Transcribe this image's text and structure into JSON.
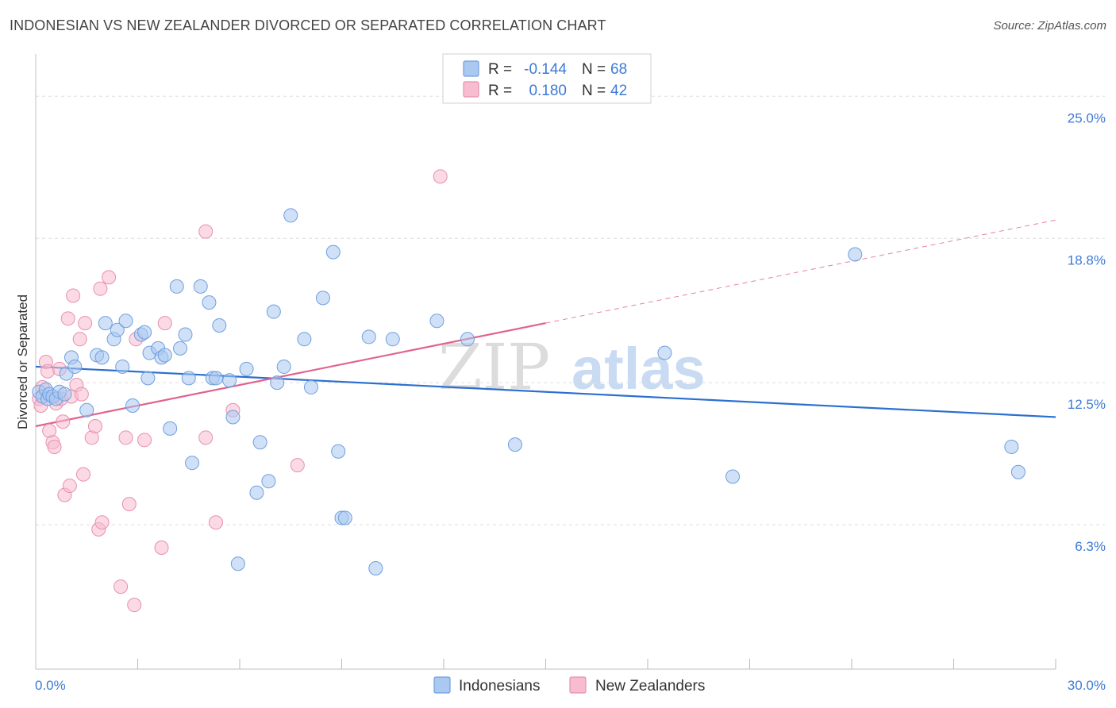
{
  "title": "INDONESIAN VS NEW ZEALANDER DIVORCED OR SEPARATED CORRELATION CHART",
  "source": "Source: ZipAtlas.com",
  "watermark": {
    "zip": "ZIP",
    "atlas": "atlas"
  },
  "legend": {
    "r_label": "R =",
    "n_label": "N =",
    "series1": {
      "r": "-0.144",
      "n": "68"
    },
    "series2": {
      "r": "0.180",
      "n": "42"
    }
  },
  "bottom_legend": {
    "series1": "Indonesians",
    "series2": "New Zealanders"
  },
  "colors": {
    "indonesians_fill": "#aac8f0",
    "indonesians_stroke": "#6f9fdf",
    "indonesians_line": "#2b6fd1",
    "nz_fill": "#f8bcd0",
    "nz_stroke": "#e890ac",
    "nz_line": "#e0628e",
    "axis_text": "#3d7ad6"
  },
  "chart_data": {
    "type": "scatter",
    "title": "INDONESIAN VS NEW ZEALANDER DIVORCED OR SEPARATED CORRELATION CHART",
    "xlabel": "",
    "ylabel": "Divorced or Separated",
    "xlim": [
      0,
      30
    ],
    "ylim": [
      0,
      26.5
    ],
    "x_tick_labels": [
      "0.0%",
      "30.0%"
    ],
    "y_ticks": [
      6.3,
      12.5,
      18.8,
      25.0
    ],
    "y_tick_labels": [
      "6.3%",
      "12.5%",
      "18.8%",
      "25.0%"
    ],
    "series": [
      {
        "name": "Indonesians",
        "r": -0.144,
        "n": 68,
        "trend": {
          "x0": 0,
          "y0": 13.2,
          "x1": 30,
          "y1": 11.0
        },
        "points": [
          [
            0.1,
            12.1
          ],
          [
            0.2,
            11.9
          ],
          [
            0.3,
            12.2
          ],
          [
            0.35,
            11.8
          ],
          [
            0.4,
            12.0
          ],
          [
            0.5,
            11.9
          ],
          [
            0.6,
            11.8
          ],
          [
            0.7,
            12.1
          ],
          [
            0.85,
            12.0
          ],
          [
            0.9,
            12.9
          ],
          [
            1.05,
            13.6
          ],
          [
            1.15,
            13.2
          ],
          [
            1.5,
            11.3
          ],
          [
            1.8,
            13.7
          ],
          [
            1.95,
            13.6
          ],
          [
            2.05,
            15.1
          ],
          [
            2.3,
            14.4
          ],
          [
            2.4,
            14.8
          ],
          [
            2.55,
            13.2
          ],
          [
            2.65,
            15.2
          ],
          [
            2.85,
            11.5
          ],
          [
            3.1,
            14.6
          ],
          [
            3.2,
            14.7
          ],
          [
            3.3,
            12.7
          ],
          [
            3.35,
            13.8
          ],
          [
            3.6,
            14.0
          ],
          [
            3.7,
            13.6
          ],
          [
            3.8,
            13.7
          ],
          [
            3.95,
            10.5
          ],
          [
            4.15,
            16.7
          ],
          [
            4.25,
            14.0
          ],
          [
            4.4,
            14.6
          ],
          [
            4.5,
            12.7
          ],
          [
            4.6,
            9.0
          ],
          [
            4.85,
            16.7
          ],
          [
            5.1,
            16.0
          ],
          [
            5.2,
            12.7
          ],
          [
            5.3,
            12.7
          ],
          [
            5.4,
            15.0
          ],
          [
            5.7,
            12.6
          ],
          [
            5.8,
            11.0
          ],
          [
            5.95,
            4.6
          ],
          [
            6.2,
            13.1
          ],
          [
            6.5,
            7.7
          ],
          [
            6.6,
            9.9
          ],
          [
            6.85,
            8.2
          ],
          [
            7.0,
            15.6
          ],
          [
            7.1,
            12.5
          ],
          [
            7.3,
            13.2
          ],
          [
            7.5,
            19.8
          ],
          [
            7.9,
            14.4
          ],
          [
            8.1,
            12.3
          ],
          [
            8.45,
            16.2
          ],
          [
            8.75,
            18.2
          ],
          [
            8.9,
            9.5
          ],
          [
            9.0,
            6.6
          ],
          [
            9.1,
            6.6
          ],
          [
            9.8,
            14.5
          ],
          [
            10.0,
            4.4
          ],
          [
            10.5,
            14.4
          ],
          [
            11.8,
            15.2
          ],
          [
            12.7,
            14.4
          ],
          [
            14.1,
            9.8
          ],
          [
            18.5,
            13.8
          ],
          [
            20.5,
            8.4
          ],
          [
            24.1,
            18.1
          ],
          [
            28.7,
            9.7
          ],
          [
            28.9,
            8.6
          ]
        ]
      },
      {
        "name": "New Zealanders",
        "r": 0.18,
        "n": 42,
        "trend": {
          "x0": 0,
          "y0": 10.6,
          "x1": 15.0,
          "y1": 15.1
        },
        "trend_extension": {
          "x0": 15.0,
          "y0": 15.1,
          "x1": 30,
          "y1": 19.6
        },
        "points": [
          [
            0.1,
            11.8
          ],
          [
            0.15,
            11.5
          ],
          [
            0.2,
            12.3
          ],
          [
            0.3,
            13.4
          ],
          [
            0.35,
            13.0
          ],
          [
            0.4,
            10.4
          ],
          [
            0.5,
            9.9
          ],
          [
            0.55,
            9.7
          ],
          [
            0.6,
            11.6
          ],
          [
            0.7,
            13.1
          ],
          [
            0.75,
            11.8
          ],
          [
            0.8,
            10.8
          ],
          [
            0.85,
            7.6
          ],
          [
            0.95,
            15.3
          ],
          [
            1.0,
            8.0
          ],
          [
            1.05,
            11.9
          ],
          [
            1.1,
            16.3
          ],
          [
            1.2,
            12.4
          ],
          [
            1.3,
            14.4
          ],
          [
            1.35,
            12.0
          ],
          [
            1.4,
            8.5
          ],
          [
            1.45,
            15.1
          ],
          [
            1.65,
            10.1
          ],
          [
            1.75,
            10.6
          ],
          [
            1.9,
            16.6
          ],
          [
            1.85,
            6.1
          ],
          [
            1.95,
            6.4
          ],
          [
            2.15,
            17.1
          ],
          [
            2.5,
            3.6
          ],
          [
            2.65,
            10.1
          ],
          [
            2.75,
            7.2
          ],
          [
            2.9,
            2.8
          ],
          [
            2.95,
            14.4
          ],
          [
            3.2,
            10.0
          ],
          [
            3.7,
            5.3
          ],
          [
            3.8,
            15.1
          ],
          [
            5.0,
            19.1
          ],
          [
            5.0,
            10.1
          ],
          [
            5.3,
            6.4
          ],
          [
            5.8,
            11.3
          ],
          [
            7.7,
            8.9
          ],
          [
            11.9,
            21.5
          ]
        ]
      }
    ]
  }
}
